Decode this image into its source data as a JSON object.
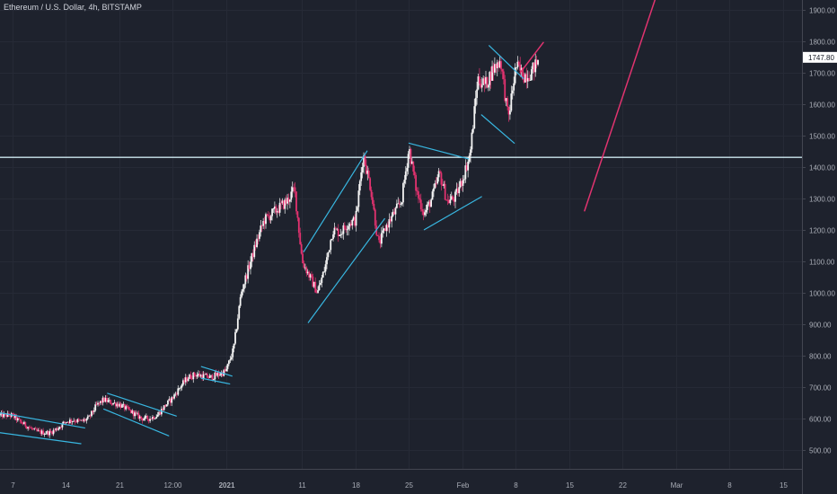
{
  "legend": "Ethereum / U.S. Dollar, 4h, BITSTAMP",
  "colors": {
    "background": "#1e222d",
    "grid": "#262a36",
    "axis_text": "#a9adb6",
    "up_candle": "#f5f5f5",
    "down_candle": "#e2326f",
    "trendline": "#38b6e0",
    "support_line": "#cde7ef",
    "projection": "#e0336f",
    "price_label_bg": "#ffffff",
    "price_label_text": "#131722"
  },
  "chart_data": {
    "type": "candlestick",
    "title": "Ethereum / U.S. Dollar, 4h, BITSTAMP",
    "ylim": [
      440,
      1930
    ],
    "y_ticks": [
      500,
      600,
      700,
      800,
      900,
      1000,
      1100,
      1200,
      1300,
      1400,
      1500,
      1600,
      1700,
      1800,
      1900
    ],
    "y_tick_labels": [
      "500.00",
      "600.00",
      "700.00",
      "800.00",
      "900.00",
      "1000.00",
      "1100.00",
      "1200.00",
      "1300.00",
      "1400.00",
      "1500.00",
      "1600.00",
      "1700.00",
      "1800.00",
      "1900.00"
    ],
    "x_range_days": [
      -1.6,
      69.6
    ],
    "x_ticks": [
      {
        "day": 0,
        "label": "7"
      },
      {
        "day": 7,
        "label": "14"
      },
      {
        "day": 14,
        "label": "21"
      },
      {
        "day": 21,
        "label": "12:00"
      },
      {
        "day": 28,
        "label": "2021"
      },
      {
        "day": 38,
        "label": "11"
      },
      {
        "day": 45,
        "label": "18"
      },
      {
        "day": 52,
        "label": "25"
      },
      {
        "day": 59,
        "label": "Feb"
      },
      {
        "day": 66,
        "label": "8"
      },
      {
        "day": 73,
        "label": "15"
      },
      {
        "day": 80,
        "label": "22"
      },
      {
        "day": 87,
        "label": "Mar"
      },
      {
        "day": 94,
        "label": "8"
      },
      {
        "day": 101,
        "label": "15"
      }
    ],
    "last_price": 1747.8,
    "last_price_label": "1747.80",
    "horizontal_level": 1430,
    "price_path": [
      [
        0,
        610
      ],
      [
        1,
        590
      ],
      [
        2,
        575
      ],
      [
        3,
        560
      ],
      [
        4,
        555
      ],
      [
        5,
        555
      ],
      [
        6,
        570
      ],
      [
        7,
        590
      ],
      [
        8,
        595
      ],
      [
        9,
        590
      ],
      [
        10,
        600
      ],
      [
        11,
        640
      ],
      [
        12,
        660
      ],
      [
        13,
        650
      ],
      [
        14,
        645
      ],
      [
        15,
        630
      ],
      [
        16,
        615
      ],
      [
        17,
        600
      ],
      [
        18,
        600
      ],
      [
        19,
        610
      ],
      [
        20,
        640
      ],
      [
        21,
        665
      ],
      [
        22,
        700
      ],
      [
        23,
        730
      ],
      [
        24,
        740
      ],
      [
        25,
        735
      ],
      [
        26,
        730
      ],
      [
        27,
        740
      ],
      [
        28,
        750
      ],
      [
        29,
        820
      ],
      [
        30,
        1000
      ],
      [
        31,
        1080
      ],
      [
        32,
        1160
      ],
      [
        33,
        1230
      ],
      [
        34,
        1250
      ],
      [
        35,
        1270
      ],
      [
        36,
        1290
      ],
      [
        37,
        1330
      ],
      [
        38,
        1100
      ],
      [
        39,
        1050
      ],
      [
        40,
        1000
      ],
      [
        41,
        1080
      ],
      [
        42,
        1200
      ],
      [
        43,
        1190
      ],
      [
        44,
        1220
      ],
      [
        45,
        1230
      ],
      [
        46,
        1440
      ],
      [
        47,
        1330
      ],
      [
        48,
        1150
      ],
      [
        49,
        1210
      ],
      [
        50,
        1250
      ],
      [
        51,
        1290
      ],
      [
        52,
        1460
      ],
      [
        53,
        1320
      ],
      [
        54,
        1250
      ],
      [
        55,
        1300
      ],
      [
        56,
        1380
      ],
      [
        57,
        1290
      ],
      [
        58,
        1300
      ],
      [
        59,
        1360
      ],
      [
        60,
        1440
      ],
      [
        61,
        1680
      ],
      [
        62,
        1660
      ],
      [
        63,
        1710
      ],
      [
        64,
        1740
      ],
      [
        65,
        1550
      ],
      [
        66,
        1720
      ],
      [
        67,
        1690
      ],
      [
        68,
        1700
      ],
      [
        69,
        1740
      ]
    ],
    "drawings": [
      {
        "kind": "trendline",
        "from": [
          -1.6,
          618
        ],
        "to": [
          9.5,
          570
        ]
      },
      {
        "kind": "trendline",
        "from": [
          -1.6,
          555
        ],
        "to": [
          9.0,
          520
        ]
      },
      {
        "kind": "trendline",
        "from": [
          12.5,
          680
        ],
        "to": [
          21.5,
          608
        ]
      },
      {
        "kind": "trendline",
        "from": [
          12.0,
          630
        ],
        "to": [
          20.5,
          545
        ]
      },
      {
        "kind": "trendline",
        "from": [
          24.8,
          765
        ],
        "to": [
          28.8,
          735
        ]
      },
      {
        "kind": "trendline",
        "from": [
          24.8,
          728
        ],
        "to": [
          28.5,
          710
        ]
      },
      {
        "kind": "trendline",
        "from": [
          38.2,
          1130
        ],
        "to": [
          46.5,
          1450
        ]
      },
      {
        "kind": "trendline",
        "from": [
          38.8,
          905
        ],
        "to": [
          48.8,
          1235
        ]
      },
      {
        "kind": "trendline",
        "from": [
          52.0,
          1475
        ],
        "to": [
          59.8,
          1425
        ]
      },
      {
        "kind": "trendline",
        "from": [
          54.0,
          1200
        ],
        "to": [
          61.5,
          1305
        ]
      },
      {
        "kind": "trendline",
        "from": [
          62.5,
          1785
        ],
        "to": [
          67.0,
          1680
        ]
      },
      {
        "kind": "trendline",
        "from": [
          61.5,
          1565
        ],
        "to": [
          65.8,
          1475
        ]
      },
      {
        "kind": "projection",
        "from": [
          66.6,
          1700
        ],
        "to": [
          69.6,
          1795
        ]
      },
      {
        "kind": "projection",
        "from": [
          75.0,
          1260
        ],
        "to": [
          84.5,
          1950
        ]
      }
    ]
  }
}
